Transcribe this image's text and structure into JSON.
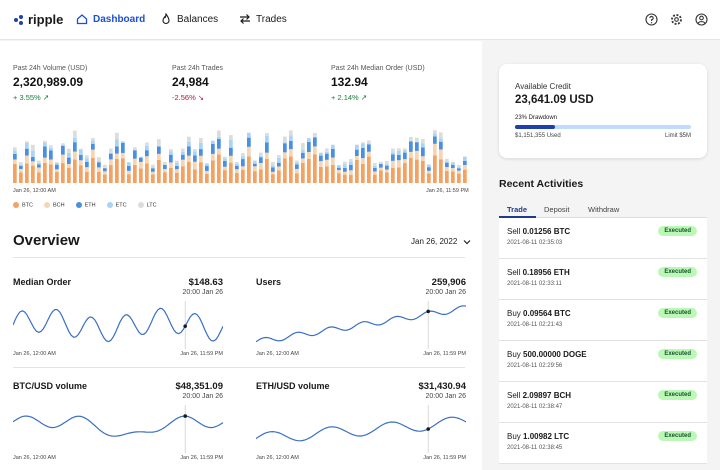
{
  "nav": {
    "logo": "ripple",
    "items": [
      {
        "label": "Dashboard",
        "active": true
      },
      {
        "label": "Balances",
        "active": false
      },
      {
        "label": "Trades",
        "active": false
      }
    ]
  },
  "stats": [
    {
      "label": "Past 24h Volume (USD)",
      "value": "2,320,989.09",
      "change": "+ 3.55%",
      "direction": "up"
    },
    {
      "label": "Past 24h Trades",
      "value": "24,984",
      "change": "-2.56%",
      "direction": "down"
    },
    {
      "label": "Past 24h Median Order (USD)",
      "value": "132.94",
      "change": "+ 2.14%",
      "direction": "up"
    }
  ],
  "volume_chart": {
    "start_label": "Jan 26, 12:00 AM",
    "end_label": "Jan 26, 11:59 PM",
    "legend": [
      {
        "label": "BTC",
        "color": "#f4a261"
      },
      {
        "label": "BCH",
        "color": "#f7d5b3"
      },
      {
        "label": "ETH",
        "color": "#4a90e2"
      },
      {
        "label": "ETC",
        "color": "#a8d4f5"
      },
      {
        "label": "LTC",
        "color": "#dcdcdc"
      }
    ]
  },
  "overview": {
    "title": "Overview",
    "date": "Jan 26, 2022",
    "metrics": [
      {
        "title": "Median Order",
        "value": "$148.63",
        "time": "20:00 Jan 26",
        "start": "Jan 26, 12:00 AM",
        "end": "Jan 26, 11:59 PM"
      },
      {
        "title": "Users",
        "value": "259,906",
        "time": "20:00 Jan 26",
        "start": "Jan 26, 12:00 AM",
        "end": "Jan 26, 11:59 PM"
      },
      {
        "title": "BTC/USD volume",
        "value": "$48,351.09",
        "time": "20:00 Jan 26",
        "start": "Jan 26, 12:00 AM",
        "end": "Jan 26, 11:59 PM"
      },
      {
        "title": "ETH/USD volume",
        "value": "$31,430.94",
        "time": "20:00 Jan 26",
        "start": "Jan 26, 12:00 AM",
        "end": "Jan 26, 11:59 PM"
      }
    ]
  },
  "credit": {
    "label": "Available Credit",
    "value": "23,641.09 USD",
    "drawdown_label": "23% Drawdown",
    "drawdown_fraction": 0.23,
    "used": "$1,151,355 Used",
    "limit": "Limit $5M"
  },
  "activities": {
    "title": "Recent Activities",
    "tabs": [
      "Trade",
      "Deposit",
      "Withdraw"
    ],
    "items": [
      {
        "side": "Sell",
        "amount": "0.01256 BTC",
        "time": "2021-08-11 02:35:03",
        "status": "Executed"
      },
      {
        "side": "Sell",
        "amount": "0.18956 ETH",
        "time": "2021-08-11 02:33:11",
        "status": "Executed"
      },
      {
        "side": "Buy",
        "amount": "0.09564 BTC",
        "time": "2021-08-11 02:21:43",
        "status": "Executed"
      },
      {
        "side": "Buy",
        "amount": "500.00000 DOGE",
        "time": "2021-08-11 02:29:56",
        "status": "Executed"
      },
      {
        "side": "Sell",
        "amount": "2.09897 BCH",
        "time": "2021-08-11 02:38:47",
        "status": "Executed"
      },
      {
        "side": "Buy",
        "amount": "1.00982 LTC",
        "time": "2021-08-11 02:38:45",
        "status": "Executed"
      }
    ]
  }
}
